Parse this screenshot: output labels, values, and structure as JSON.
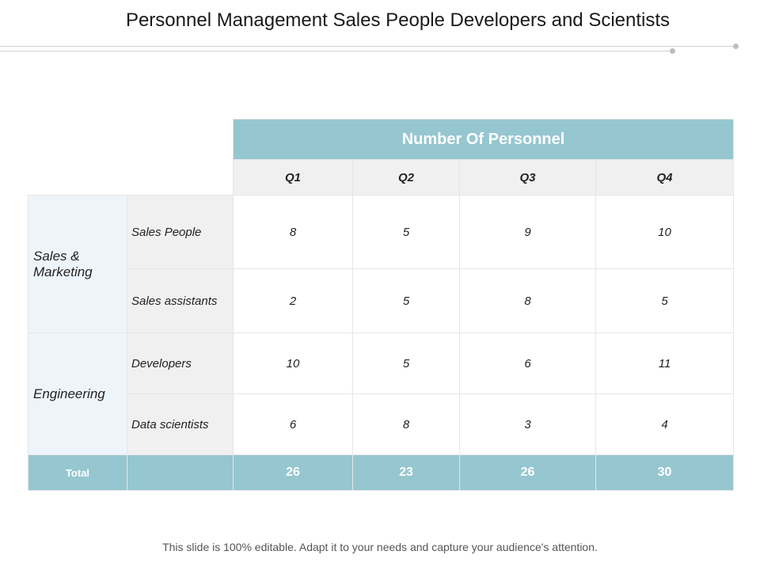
{
  "slide": {
    "title": "Personnel Management Sales People Developers and Scientists",
    "footer": "This slide is 100% editable. Adapt it to your needs and capture your audience's attention."
  },
  "colors": {
    "header": "#96c6d0",
    "group_bg": "#eef5fa",
    "sub_bg": "#f0f0f0"
  },
  "table": {
    "header": "Number Of Personnel",
    "quarters": [
      "Q1",
      "Q2",
      "Q3",
      "Q4"
    ],
    "groups": [
      {
        "label": "Sales & Marketing",
        "rows": [
          {
            "label": "Sales People",
            "values": [
              "8",
              "5",
              "9",
              "10"
            ]
          },
          {
            "label": "Sales assistants",
            "values": [
              "2",
              "5",
              "8",
              "5"
            ]
          }
        ]
      },
      {
        "label": "Engineering",
        "rows": [
          {
            "label": "Developers",
            "values": [
              "10",
              "5",
              "6",
              "11"
            ]
          },
          {
            "label": "Data scientists",
            "values": [
              "6",
              "8",
              "3",
              "4"
            ]
          }
        ]
      }
    ],
    "total": {
      "label": "Total",
      "values": [
        "26",
        "23",
        "26",
        "30"
      ]
    }
  }
}
